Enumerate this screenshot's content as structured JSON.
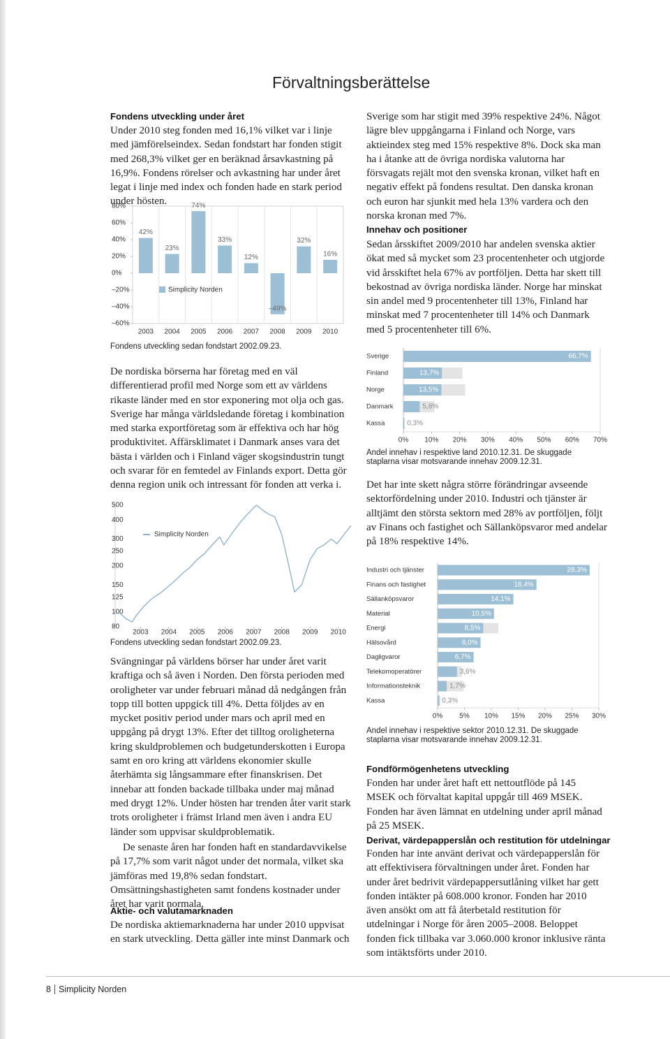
{
  "title": "Förvaltningsberättelse",
  "development": {
    "heading": "Fondens utveckling under året",
    "paragraph": "Under 2010 steg fonden med 16,1% vilket var i linje med jämförelseindex. Sedan fondstart har fonden stigit med 268,3% vilket ger en beräknad årsavkastning på 16,9%. Fondens rörelser och avkastning har under året legat i linje med index och fonden hade en stark period under hösten."
  },
  "region_paragraph": "De nordiska börserna har företag med en väl differentierad profil med Norge som ett av världens rikaste länder med en stor exponering mot olja och gas. Sverige har många världsledande företag i kombination med starka exportföretag som är effektiva och har hög produktivitet. Affärsklimatet i Danmark anses vara det bästa i världen och i Finland väger skogsindustrin tungt och svarar för en femtedel av Finlands export. Detta gör denna region unik och intressant för fonden att verka i.",
  "market_paragraphs": [
    "Svängningar på världens börser har under året varit kraftiga och så även i Norden. Den första perioden med oroligheter var under februari månad då nedgången från topp till botten uppgick till 4%. Detta följdes av en mycket positiv period under mars och april med en uppgång på drygt 13%. Efter det tilltog oroligheterna kring skuldproblemen och budgetunderskotten i Europa samt en oro kring att världens ekonomier skulle återhämta sig långsammare efter finanskrisen. Det innebar att fonden backade tillbaka under maj månad med drygt 12%. Under hösten har trenden åter varit stark trots oroligheter i främst Irland men även i andra EU länder som uppvisar skuldproblematik.",
    "De senaste åren har fonden haft en standardavvikelse på 17,7% som varit något under det normala, vilket ska jämföras med 19,8% sedan fondstart. Omsättningshastigheten samt fondens kostnader under året har varit normala."
  ],
  "equity_market": {
    "heading": "Aktie- och valutamarknaden",
    "paragraph_start": "De nordiska aktiemarknaderna har under 2010 uppvisat en stark utveckling. Detta gäller inte minst Danmark och",
    "paragraph_end": "Sverige som har stigit med 39% respektive 24%. Något lägre blev uppgångarna i Finland och Norge, vars aktieindex steg med 15% respektive 8%. Dock ska man ha i åtanke att de övriga nordiska valutorna har försvagats rejält mot den svenska kronan, vilket haft en negativ effekt på fondens resultat. Den danska kronan och euron har sjunkit med hela 13% vardera och den norska kronan med 7%."
  },
  "holdings": {
    "heading": "Innehav och positioner",
    "paragraph": "Sedan årsskiftet 2009/2010 har andelen svenska aktier ökat med så mycket som 23 procentenheter och utgjorde vid årsskiftet hela 67% av portföljen. Detta har skett till bekostnad av övriga nordiska länder. Norge har minskat sin andel med 9 procentenheter till 13%, Finland har minskat med 7 procentenheter till 14% och Danmark med 5 procentenheter till 6%."
  },
  "sector_paragraph": "Det har inte skett några större förändringar avseende sektorfördelning under 2010. Industri och tjänster är alltjämt den största sektorn med 28% av portföljen, följt av Finans och fastighet och Sällanköpsvaror med andelar på 18% respektive 14%.",
  "fund_assets": {
    "heading": "Fondförmögenhetens utveckling",
    "paragraph": "Fonden har under året haft ett nettoutflöde på 145 MSEK och förvaltat kapital uppgår till 469 MSEK. Fonden har även lämnat en utdelning under april månad på 25 MSEK."
  },
  "derivatives": {
    "heading": "Derivat, värdepapperslån och restitution för utdelningar",
    "paragraph": "Fonden har inte använt derivat och värdepapperslån för att effektivisera förvaltningen under året. Fonden har under året bedrivit värdepappersutlåning vilket har gett fonden intäkter på 608.000 kronor. Fonden har 2010 även ansökt om att få återbetald restitution för utdelningar i Norge för åren 2005–2008. Beloppet fonden fick tillbaka var 3.060.000 kronor inklusive ränta som intäktsförts under 2010."
  },
  "footer": {
    "page": "8",
    "name": "Simplicity Norden"
  },
  "chart_data": [
    {
      "type": "bar",
      "caption": "Fondens utveckling sedan fondstart 2002.09.23.",
      "categories": [
        "2003",
        "2004",
        "2005",
        "2006",
        "2007",
        "2008",
        "2009",
        "2010"
      ],
      "series": [
        {
          "name": "Simplicity Norden",
          "color": "#9dbfd6",
          "values": [
            42,
            23,
            74,
            33,
            12,
            -49,
            32,
            16
          ],
          "value_labels": [
            "42%",
            "23%",
            "74%",
            "33%",
            "12%",
            "–49%",
            "32%",
            "16%"
          ]
        }
      ],
      "ylim": [
        -60,
        80
      ],
      "yticks": [
        {
          "value": 80,
          "label": "80%"
        },
        {
          "value": 60,
          "label": "60%"
        },
        {
          "value": 40,
          "label": "40%"
        },
        {
          "value": 20,
          "label": "20%"
        },
        {
          "value": 0,
          "label": "0%"
        },
        {
          "value": -20,
          "label": "–20%"
        },
        {
          "value": -40,
          "label": "–40%"
        },
        {
          "value": -60,
          "label": "–60%"
        }
      ]
    },
    {
      "type": "line",
      "caption": "Fondens utveckling sedan fondstart 2002.09.23.",
      "log_scale": true,
      "x": [
        2002.73,
        2002.85,
        2003.0,
        2003.2,
        2003.35,
        2003.6,
        2003.85,
        2004.0,
        2004.25,
        2004.5,
        2004.75,
        2005.0,
        2005.25,
        2005.5,
        2005.75,
        2006.0,
        2006.3,
        2006.45,
        2006.75,
        2007.0,
        2007.25,
        2007.5,
        2007.6,
        2007.85,
        2008.0,
        2008.25,
        2008.5,
        2008.75,
        2008.95,
        2009.2,
        2009.5,
        2009.75,
        2010.0,
        2010.25,
        2010.45,
        2010.75,
        2010.95
      ],
      "series": [
        {
          "name": "Simplicity Norden",
          "color": "#8fb4ce",
          "values": [
            100,
            95,
            90,
            86,
            95,
            108,
            120,
            126,
            135,
            148,
            162,
            180,
            196,
            220,
            240,
            270,
            310,
            275,
            330,
            380,
            430,
            480,
            500,
            460,
            440,
            420,
            320,
            200,
            135,
            150,
            220,
            260,
            275,
            300,
            280,
            330,
            368
          ]
        }
      ],
      "xlim": [
        2002.6,
        2011.0
      ],
      "xticks": [
        {
          "value": 2003.5,
          "label": "2003"
        },
        {
          "value": 2004.5,
          "label": "2004"
        },
        {
          "value": 2005.5,
          "label": "2005"
        },
        {
          "value": 2006.5,
          "label": "2006"
        },
        {
          "value": 2007.5,
          "label": "2007"
        },
        {
          "value": 2008.5,
          "label": "2008"
        },
        {
          "value": 2009.5,
          "label": "2009"
        },
        {
          "value": 2010.5,
          "label": "2010"
        }
      ],
      "ylim": [
        80,
        500
      ],
      "yticks": [
        500,
        400,
        300,
        250,
        200,
        150,
        125,
        100,
        80
      ]
    },
    {
      "type": "hbar",
      "caption": "Andel innehav i respektive land 2010.12.31. De skuggade staplarna visar motsvarande innehav 2009.12.31.",
      "categories": [
        "Sverige",
        "Finland",
        "Norge",
        "Danmark",
        "Kassa"
      ],
      "series": [
        {
          "color": "#9dbfd6",
          "values": [
            66.7,
            13.7,
            13.5,
            5.8,
            0.3
          ],
          "value_labels": [
            "66,7%",
            "13,7%",
            "13,5%",
            "5,8%",
            "0,3%"
          ]
        },
        {
          "color": "#e4e4e4",
          "values": [
            44,
            21,
            22,
            11,
            0.5
          ]
        }
      ],
      "xlim": [
        0,
        70
      ],
      "xticks": [
        {
          "value": 0,
          "label": "0%"
        },
        {
          "value": 10,
          "label": "10%"
        },
        {
          "value": 20,
          "label": "20%"
        },
        {
          "value": 30,
          "label": "30%"
        },
        {
          "value": 40,
          "label": "40%"
        },
        {
          "value": 50,
          "label": "50%"
        },
        {
          "value": 60,
          "label": "60%"
        },
        {
          "value": 70,
          "label": "70%"
        }
      ]
    },
    {
      "type": "hbar",
      "caption": "Andel innehav i respektive sektor 2010.12.31. De skuggade staplarna visar motsvarande innehav 2009.12.31.",
      "categories": [
        "Industri och tjänster",
        "Finans och fastighet",
        "Sällanköpsvaror",
        "Material",
        "Energi",
        "Hälsovård",
        "Dagligvaror",
        "Telekomoperatörer",
        "Informationsteknik",
        "Kassa"
      ],
      "series": [
        {
          "color": "#9dbfd6",
          "values": [
            28.3,
            18.4,
            14.1,
            10.5,
            8.5,
            8.0,
            6.7,
            3.6,
            1.7,
            0.3
          ],
          "value_labels": [
            "28,3%",
            "18,4%",
            "14,1%",
            "10,5%",
            "8,5%",
            "8,0%",
            "6,7%",
            "3,6%",
            "1,7%",
            "0,3%"
          ]
        },
        {
          "color": "#e4e4e4",
          "values": [
            25,
            17,
            12,
            9,
            11.3,
            7,
            5,
            4.5,
            4.8,
            0.5
          ]
        }
      ],
      "xlim": [
        0,
        30
      ],
      "xticks": [
        {
          "value": 0,
          "label": "0%"
        },
        {
          "value": 5,
          "label": "5%"
        },
        {
          "value": 10,
          "label": "10%"
        },
        {
          "value": 15,
          "label": "15%"
        },
        {
          "value": 20,
          "label": "20%"
        },
        {
          "value": 25,
          "label": "25%"
        },
        {
          "value": 30,
          "label": "30%"
        }
      ]
    }
  ]
}
